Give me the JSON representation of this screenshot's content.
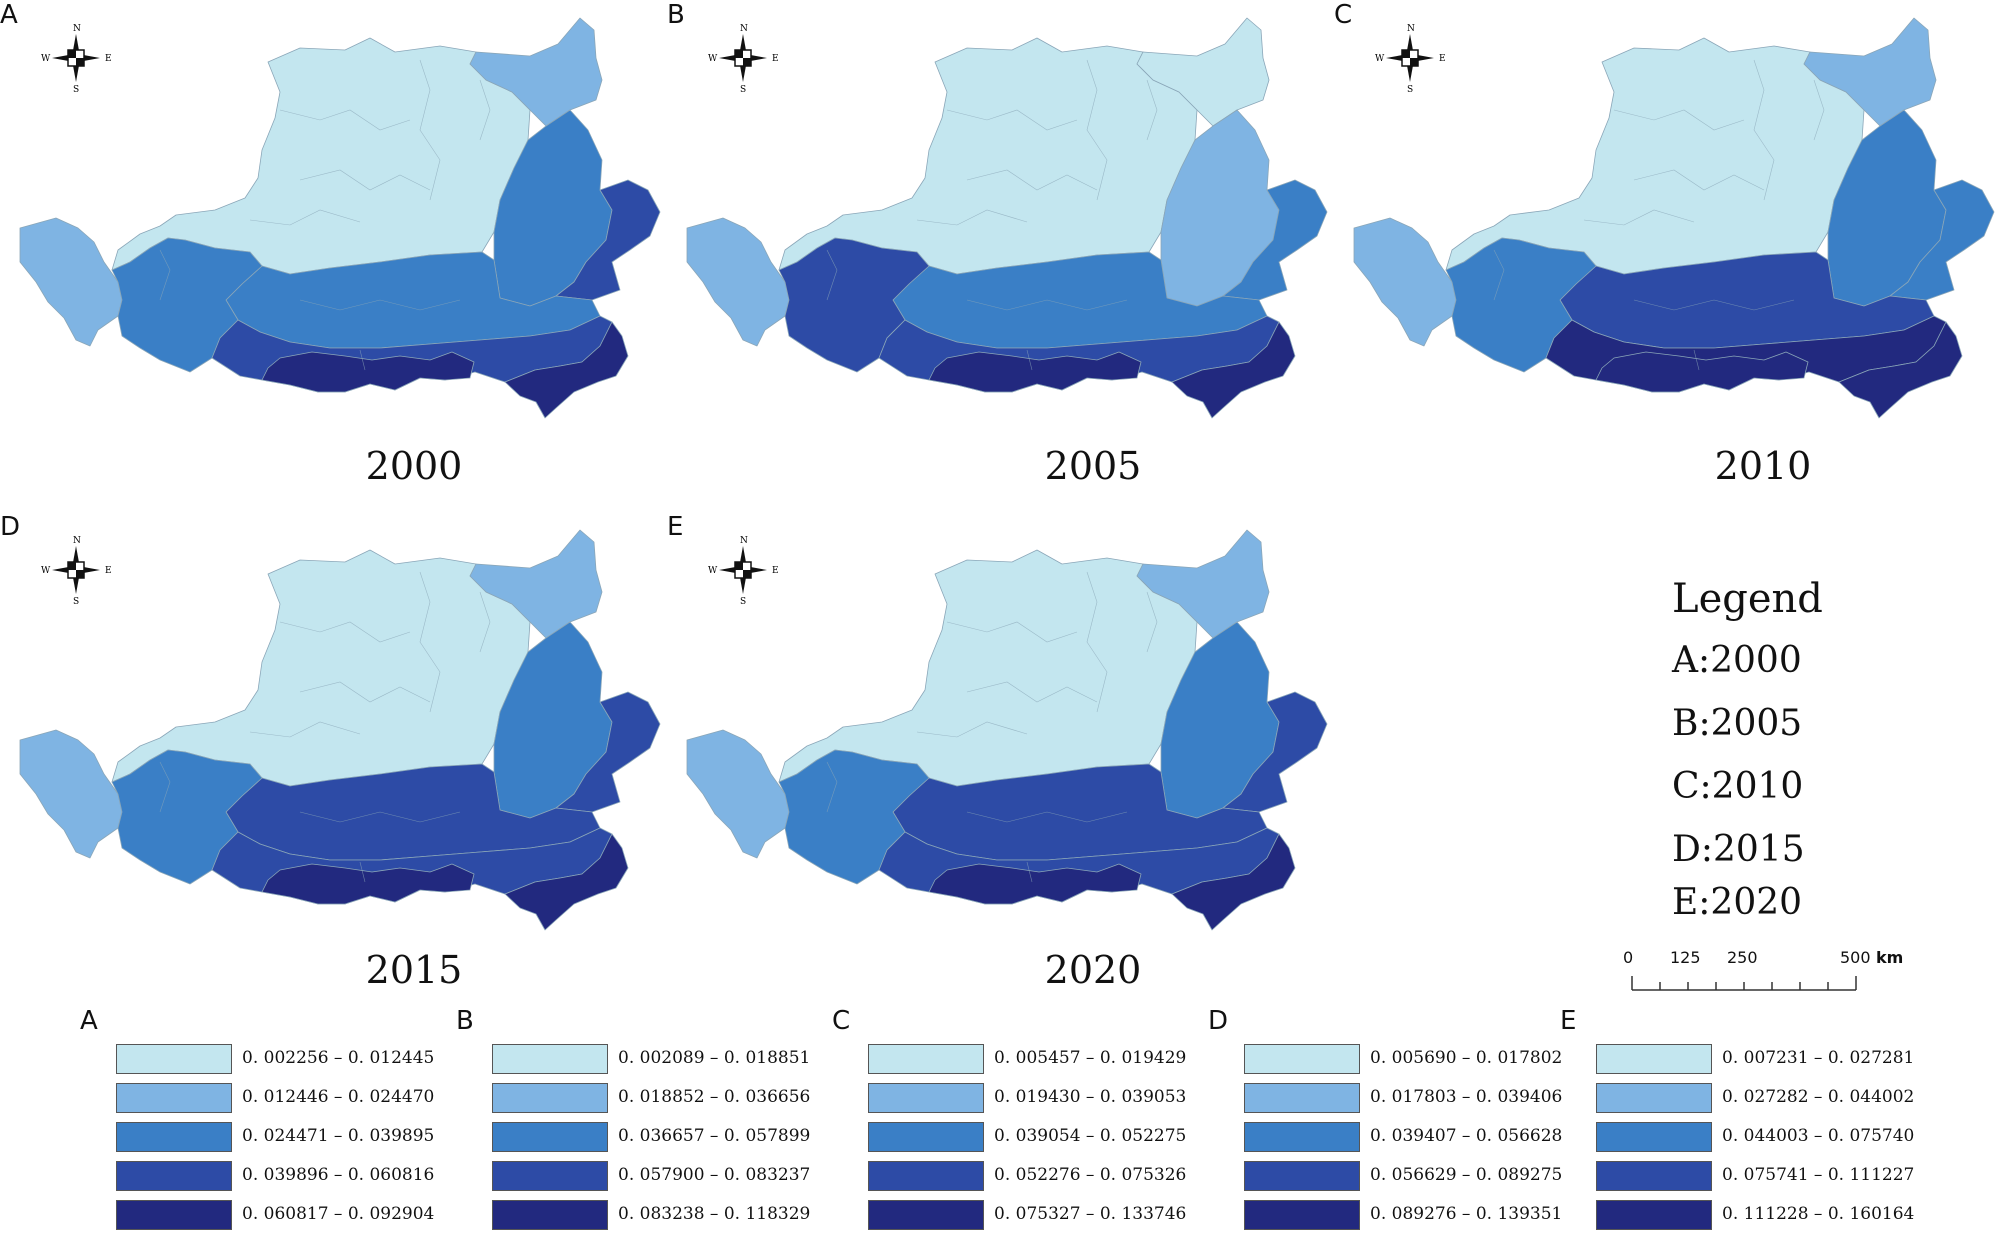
{
  "colors": {
    "class1": "#c3e6ef",
    "class2": "#7fb4e3",
    "class3": "#3a7fc6",
    "class4": "#2d4ba6",
    "class5": "#22297f",
    "boundary": "#8aa6b8"
  },
  "compass": {
    "n": "N",
    "s": "S",
    "e": "E",
    "w": "W"
  },
  "panels": [
    {
      "letter": "A",
      "year": "2000",
      "zones": {
        "north": 1,
        "northeast_tip": 2,
        "east_upper": 3,
        "east_bump": 4,
        "west": 2,
        "central": 3,
        "southwest": 3,
        "south": 4,
        "south_core": 5,
        "southeast": 5
      }
    },
    {
      "letter": "B",
      "year": "2005",
      "zones": {
        "north": 1,
        "northeast_tip": 1,
        "east_upper": 2,
        "east_bump": 3,
        "west": 2,
        "central": 3,
        "southwest": 4,
        "south": 4,
        "south_core": 5,
        "southeast": 5
      }
    },
    {
      "letter": "C",
      "year": "2010",
      "zones": {
        "north": 1,
        "northeast_tip": 2,
        "east_upper": 3,
        "east_bump": 3,
        "west": 2,
        "central": 4,
        "southwest": 3,
        "south": 5,
        "south_core": 5,
        "southeast": 5
      }
    },
    {
      "letter": "D",
      "year": "2015",
      "zones": {
        "north": 1,
        "northeast_tip": 2,
        "east_upper": 3,
        "east_bump": 4,
        "west": 2,
        "central": 4,
        "southwest": 3,
        "south": 4,
        "south_core": 5,
        "southeast": 5
      }
    },
    {
      "letter": "E",
      "year": "2020",
      "zones": {
        "north": 1,
        "northeast_tip": 2,
        "east_upper": 3,
        "east_bump": 4,
        "west": 2,
        "central": 4,
        "southwest": 3,
        "south": 4,
        "south_core": 5,
        "southeast": 5
      }
    }
  ],
  "legend": {
    "title": "Legend",
    "entries": [
      "A:2000",
      "B:2005",
      "C:2010",
      "D:2015",
      "E:2020"
    ]
  },
  "scale_bar": {
    "labels": [
      "0",
      "125",
      "250",
      "500"
    ],
    "unit": "km"
  },
  "class_legends": [
    {
      "letter": "A",
      "ranges": [
        "0. 002256 – 0. 012445",
        "0. 012446 – 0. 024470",
        "0. 024471 – 0. 039895",
        "0. 039896 – 0. 060816",
        "0. 060817 – 0. 092904"
      ]
    },
    {
      "letter": "B",
      "ranges": [
        "0. 002089 – 0. 018851",
        "0. 018852 – 0. 036656",
        "0. 036657 – 0. 057899",
        "0. 057900 – 0. 083237",
        "0. 083238 – 0. 118329"
      ]
    },
    {
      "letter": "C",
      "ranges": [
        "0. 005457 – 0. 019429",
        "0. 019430 – 0. 039053",
        "0. 039054 – 0. 052275",
        "0. 052276 – 0. 075326",
        "0. 075327 – 0. 133746"
      ]
    },
    {
      "letter": "D",
      "ranges": [
        "0. 005690 – 0. 017802",
        "0. 017803 – 0. 039406",
        "0. 039407 – 0. 056628",
        "0. 056629 – 0. 089275",
        "0. 089276 – 0. 139351"
      ]
    },
    {
      "letter": "E",
      "ranges": [
        "0. 007231 – 0. 027281",
        "0. 027282 – 0. 044002",
        "0. 044003 – 0. 075740",
        "0. 075741 – 0. 111227",
        "0. 111228 – 0. 160164"
      ]
    }
  ]
}
